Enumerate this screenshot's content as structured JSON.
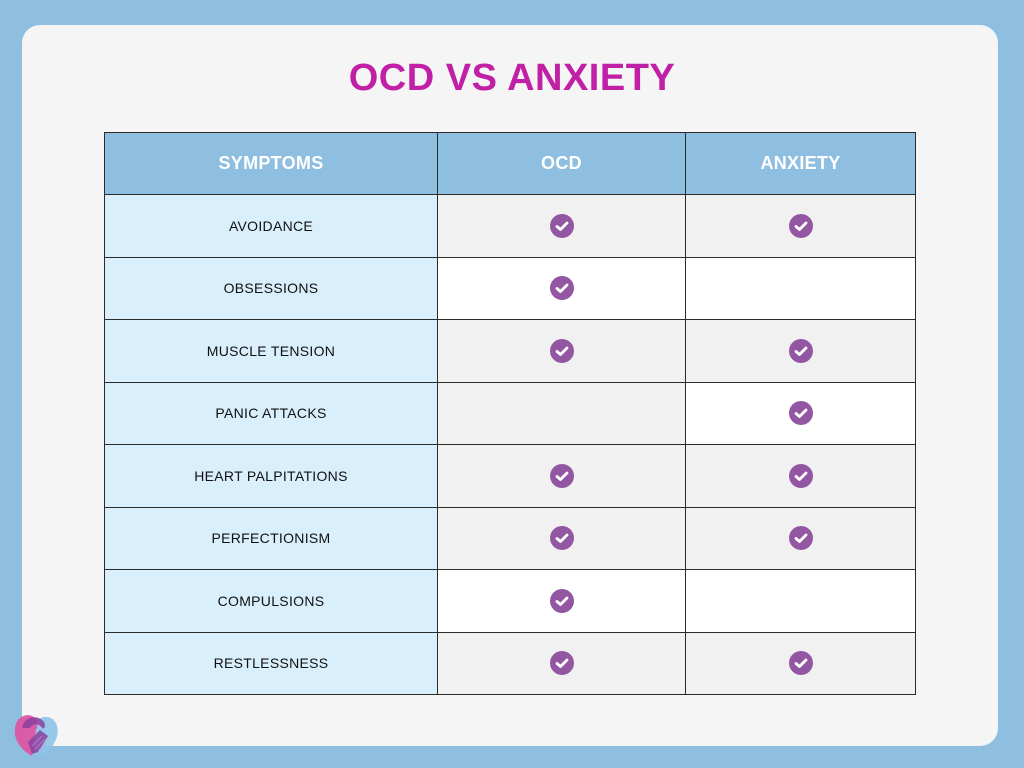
{
  "title": "OCD VS ANXIETY",
  "colors": {
    "background": "#8ebfe0",
    "title": "#c11fa6",
    "header_bg": "#8ebfe0",
    "symptom_bg": "#d9effc",
    "check": "#9356a3"
  },
  "table": {
    "headers": [
      "SYMPTOMS",
      "OCD",
      "ANXIETY"
    ],
    "rows": [
      {
        "symptom": "AVOIDANCE",
        "ocd": true,
        "anxiety": true,
        "ocd_bg": "gray",
        "anxiety_bg": "gray"
      },
      {
        "symptom": "OBSESSIONS",
        "ocd": true,
        "anxiety": false,
        "ocd_bg": "white",
        "anxiety_bg": "white"
      },
      {
        "symptom": "MUSCLE TENSION",
        "ocd": true,
        "anxiety": true,
        "ocd_bg": "gray",
        "anxiety_bg": "gray"
      },
      {
        "symptom": "PANIC ATTACKS",
        "ocd": false,
        "anxiety": true,
        "ocd_bg": "gray",
        "anxiety_bg": "white"
      },
      {
        "symptom": "HEART PALPITATIONS",
        "ocd": true,
        "anxiety": true,
        "ocd_bg": "gray",
        "anxiety_bg": "gray"
      },
      {
        "symptom": "PERFECTIONISM",
        "ocd": true,
        "anxiety": true,
        "ocd_bg": "gray",
        "anxiety_bg": "gray"
      },
      {
        "symptom": "COMPULSIONS",
        "ocd": true,
        "anxiety": false,
        "ocd_bg": "white",
        "anxiety_bg": "white"
      },
      {
        "symptom": "RESTLESSNESS",
        "ocd": true,
        "anxiety": true,
        "ocd_bg": "gray",
        "anxiety_bg": "gray"
      }
    ]
  },
  "icons": {
    "check": "check-circle-icon",
    "logo": "handshake-heart-logo"
  }
}
